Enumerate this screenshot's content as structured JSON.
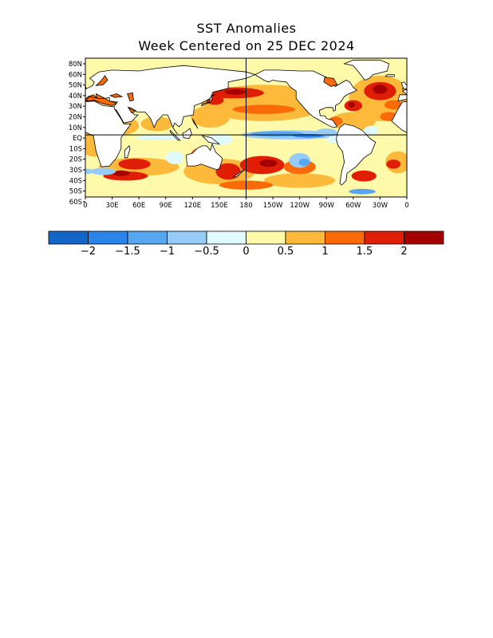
{
  "title": "SST Anomalies",
  "subtitle": "Week Centered on 25 DEC 2024",
  "map": {
    "lat_labels": [
      "80N",
      "60N",
      "50N",
      "40N",
      "30N",
      "20N",
      "10N",
      "EQ",
      "10S",
      "20S",
      "30S",
      "40S",
      "50S",
      "60S"
    ],
    "lat_values": [
      80,
      60,
      50,
      40,
      30,
      20,
      10,
      0,
      -10,
      -20,
      -30,
      -40,
      -50,
      -60
    ],
    "lon_labels": [
      "0",
      "30E",
      "60E",
      "90E",
      "120E",
      "150E",
      "180",
      "150W",
      "120W",
      "90W",
      "60W",
      "30W",
      "0"
    ],
    "lon_values": [
      0,
      30,
      60,
      90,
      120,
      150,
      180,
      210,
      240,
      270,
      300,
      330,
      360
    ],
    "land_color": "#ffffff",
    "coast_color": "#000000",
    "reference_lines": [
      "EQ",
      "180"
    ]
  },
  "legend": {
    "bins": [
      {
        "color": "#1565c8"
      },
      {
        "color": "#2c84e8"
      },
      {
        "color": "#56a6f0"
      },
      {
        "color": "#98ccf8"
      },
      {
        "color": "#e0fbff"
      },
      {
        "color": "#fffaaa"
      },
      {
        "color": "#fdba3a"
      },
      {
        "color": "#fb6a08"
      },
      {
        "color": "#e01e06"
      },
      {
        "color": "#a50000"
      }
    ],
    "tick_labels": [
      "−2",
      "−1.5",
      "−1",
      "−0.5",
      "0",
      "0.5",
      "1",
      "1.5",
      "2"
    ]
  }
}
